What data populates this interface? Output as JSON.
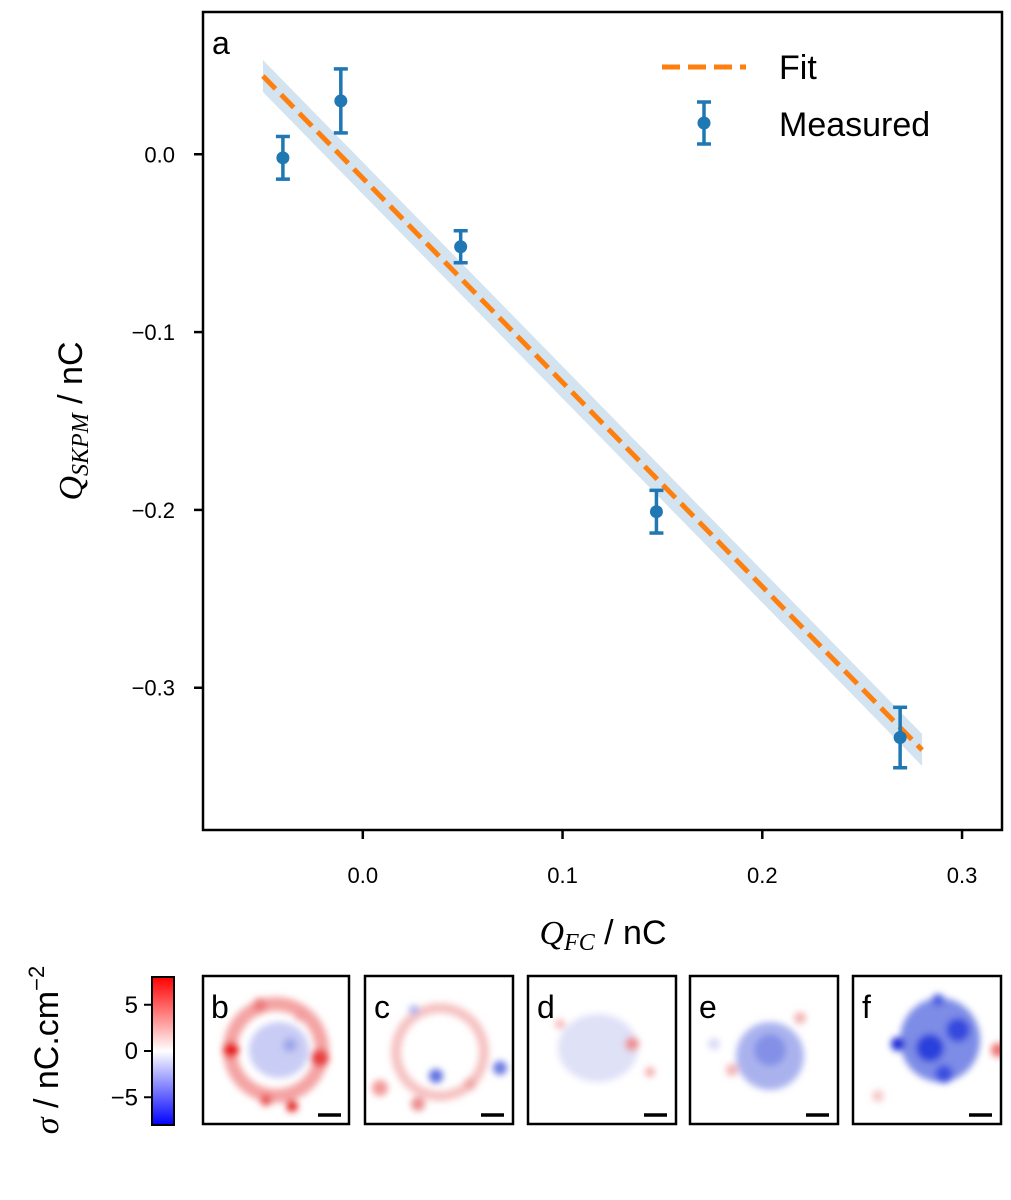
{
  "chart_data": {
    "type": "scatter",
    "panel_label": "a",
    "xlabel_symbol": "Q",
    "xlabel_subscript": "FC",
    "xlabel_unit": " / nC",
    "ylabel_symbol": "Q",
    "ylabel_subscript": "SKPM",
    "ylabel_unit": " / nC",
    "xlim": [
      -0.08,
      0.32
    ],
    "ylim": [
      -0.38,
      0.08
    ],
    "xticks": [
      0.0,
      0.1,
      0.2,
      0.3
    ],
    "xtick_labels": [
      "0.0",
      "0.1",
      "0.2",
      "0.3"
    ],
    "yticks": [
      0.0,
      -0.1,
      -0.2,
      -0.3
    ],
    "ytick_labels": [
      "0.0",
      "−0.1",
      "−0.2",
      "−0.3"
    ],
    "legend_position": "top-right",
    "series": [
      {
        "name": "Fit",
        "kind": "line",
        "style": "dashed",
        "color": "#ff7f0e",
        "x": [
          -0.05,
          0.28
        ],
        "y": [
          0.044,
          -0.335
        ],
        "band_halfwidth": 0.009,
        "band_color": "#d3e3ef"
      },
      {
        "name": "Measured",
        "kind": "errorbar",
        "color": "#1f77b4",
        "points": [
          {
            "x": -0.04,
            "y": -0.002,
            "err": 0.012
          },
          {
            "x": -0.011,
            "y": 0.03,
            "err": 0.018
          },
          {
            "x": 0.049,
            "y": -0.052,
            "err": 0.009
          },
          {
            "x": 0.147,
            "y": -0.201,
            "err": 0.012
          },
          {
            "x": 0.269,
            "y": -0.328,
            "err": 0.017
          }
        ]
      }
    ]
  },
  "colorbar": {
    "label_symbol": "σ",
    "label_unit": " / nC.cm",
    "label_exponent": "−2",
    "ticks": [
      5,
      0,
      -5
    ],
    "tick_labels": [
      "5",
      "0",
      "−5"
    ],
    "range": [
      -8,
      8
    ],
    "colors": [
      "#0000ff",
      "#ffffff",
      "#ff0000"
    ]
  },
  "maps": [
    {
      "label": "b"
    },
    {
      "label": "c"
    },
    {
      "label": "d"
    },
    {
      "label": "e"
    },
    {
      "label": "f"
    }
  ]
}
